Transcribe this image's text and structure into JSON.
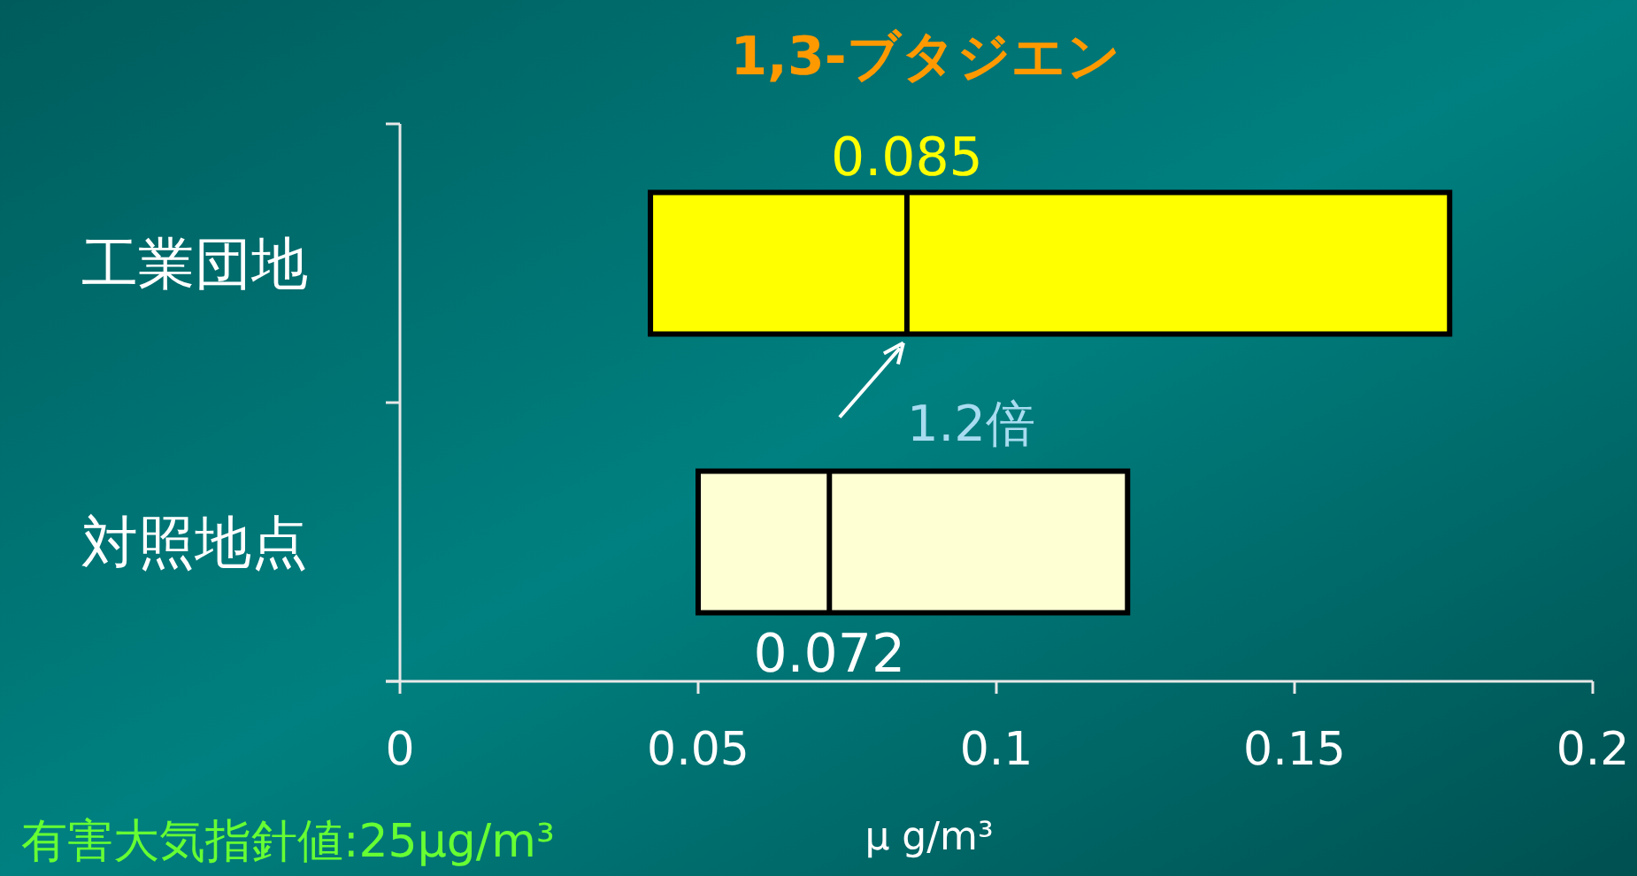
{
  "chart_data": {
    "type": "box",
    "orientation": "horizontal",
    "title": "1,3-ブタジエン",
    "xlabel": "μ g/m³",
    "categories": [
      "工業団地",
      "対照地点"
    ],
    "boxes": [
      {
        "low": 0.042,
        "q1": 0.042,
        "median": 0.085,
        "q3": 0.176,
        "high": 0.176
      },
      {
        "low": 0.05,
        "q1": 0.05,
        "median": 0.072,
        "q3": 0.122,
        "high": 0.122
      }
    ],
    "colors": [
      "#ffff00",
      "#ffffd4"
    ],
    "value_labels": [
      "0.085",
      "0.072"
    ],
    "xlim": [
      0,
      0.2
    ],
    "xticks": [
      0,
      0.05,
      0.1,
      0.15,
      0.2
    ],
    "grid": false,
    "annotations": [
      {
        "text": "1.2倍",
        "x": 0.085,
        "y": "工業団地"
      },
      "有害大気指針値:25μg/m³"
    ]
  }
}
